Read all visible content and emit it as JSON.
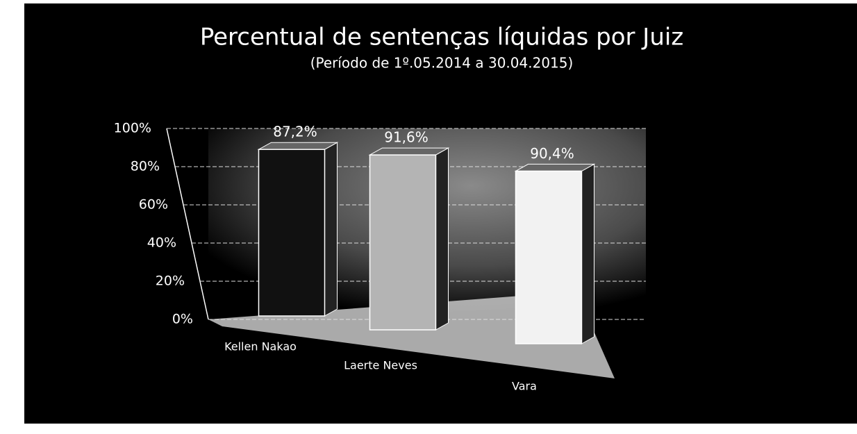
{
  "chart_data": {
    "type": "bar3d",
    "title": "Percentual de sentenças líquidas por Juiz",
    "subtitle": "(Período de 1º.05.2014  a  30.04.2015)",
    "categories": [
      "Kellen Nakao",
      "Laerte Neves",
      "Vara"
    ],
    "values": [
      87.2,
      91.6,
      90.4
    ],
    "value_labels": [
      "87,2%",
      "91,6%",
      "90,4%"
    ],
    "colors": [
      "#111111",
      "#b4b4b4",
      "#f2f2f2"
    ],
    "ylim": [
      0,
      100
    ],
    "yticks": [
      {
        "value": 0,
        "label": "0%"
      },
      {
        "value": 20,
        "label": "20%"
      },
      {
        "value": 40,
        "label": "40%"
      },
      {
        "value": 60,
        "label": "60%"
      },
      {
        "value": 80,
        "label": "80%"
      },
      {
        "value": 100,
        "label": "100%"
      }
    ],
    "grid": true
  }
}
